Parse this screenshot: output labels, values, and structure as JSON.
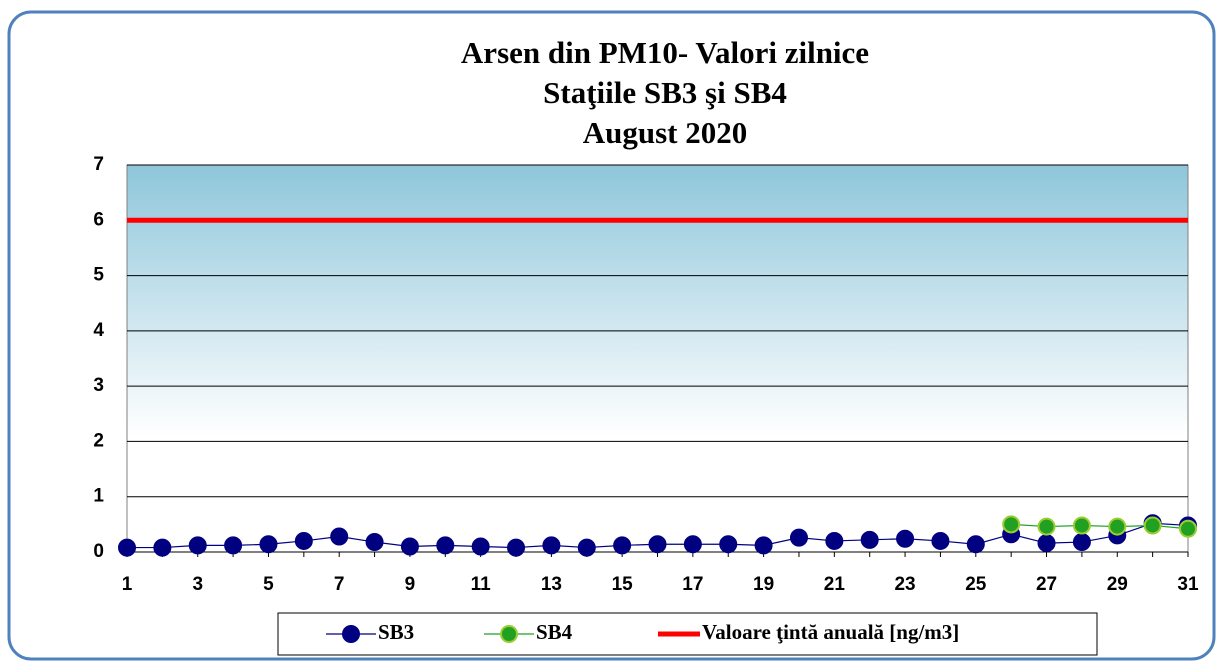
{
  "chart_data": {
    "type": "line",
    "title": [
      "Arsen din PM10- Valori zilnice",
      "Staţiile SB3 şi SB4",
      "August 2020"
    ],
    "categories": [
      "1",
      null,
      "3",
      null,
      "5",
      null,
      "7",
      null,
      "9",
      null,
      "11",
      null,
      "13",
      null,
      "15",
      null,
      "17",
      null,
      "19",
      null,
      "21",
      null,
      "23",
      null,
      "25",
      null,
      "27",
      null,
      "29",
      null,
      "31"
    ],
    "series": [
      {
        "name": "SB3",
        "color": "#000080",
        "marker": true,
        "values": [
          0.08,
          0.08,
          0.12,
          0.12,
          0.14,
          0.2,
          0.28,
          0.18,
          0.1,
          0.12,
          0.1,
          0.08,
          0.12,
          0.08,
          0.12,
          0.14,
          0.14,
          0.14,
          0.12,
          0.26,
          0.2,
          0.22,
          0.24,
          0.2,
          0.14,
          0.32,
          0.16,
          0.18,
          0.3,
          0.52,
          0.48
        ]
      },
      {
        "name": "SB4",
        "color": "#22a022",
        "marker": true,
        "values": [
          null,
          null,
          null,
          null,
          null,
          null,
          null,
          null,
          null,
          null,
          null,
          null,
          null,
          null,
          null,
          null,
          null,
          null,
          null,
          null,
          null,
          null,
          null,
          null,
          null,
          0.5,
          0.46,
          0.48,
          0.46,
          0.48,
          0.42
        ]
      },
      {
        "name": "Valoare ţintă anuală [ng/m3]",
        "color": "#ff0000",
        "marker": false,
        "values": [
          6,
          6,
          6,
          6,
          6,
          6,
          6,
          6,
          6,
          6,
          6,
          6,
          6,
          6,
          6,
          6,
          6,
          6,
          6,
          6,
          6,
          6,
          6,
          6,
          6,
          6,
          6,
          6,
          6,
          6,
          6
        ]
      }
    ],
    "ylim": [
      0,
      7
    ],
    "yticks": [
      0,
      1,
      2,
      3,
      4,
      5,
      6,
      7
    ],
    "grid": true
  }
}
